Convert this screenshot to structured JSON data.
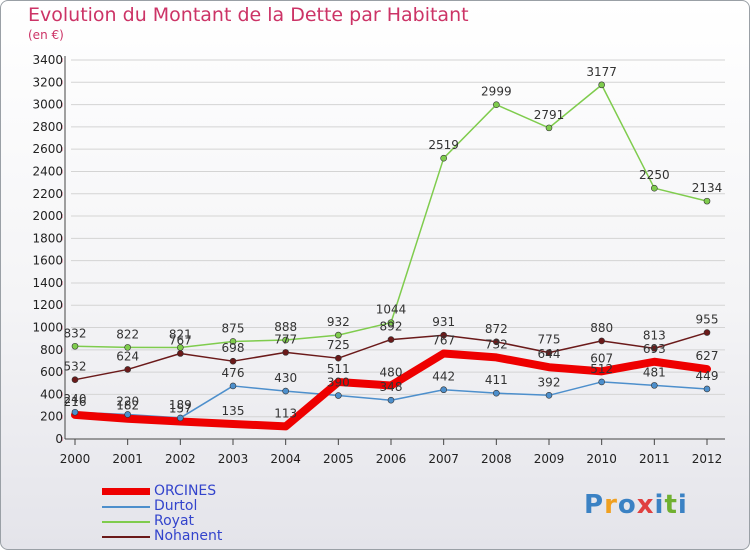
{
  "chart_data": {
    "type": "line",
    "title": "Evolution du Montant de la Dette par Habitant",
    "subtitle": "(en €)",
    "x": [
      "2000",
      "2001",
      "2002",
      "2003",
      "2004",
      "2005",
      "2006",
      "2007",
      "2008",
      "2009",
      "2010",
      "2011",
      "2012"
    ],
    "ylim": [
      0,
      3400
    ],
    "yticks": [
      0,
      200,
      400,
      600,
      800,
      1000,
      1200,
      1400,
      1600,
      1800,
      2000,
      2200,
      2400,
      2600,
      2800,
      3000,
      3200,
      3400
    ],
    "grid": "horizontal",
    "legend_position": "bottom-left",
    "series": [
      {
        "name": "ORCINES",
        "color": "#ee0000",
        "highlight": true,
        "values": [
          216,
          182,
          157,
          135,
          113,
          511,
          480,
          767,
          732,
          644,
          607,
          693,
          627
        ]
      },
      {
        "name": "Durtol",
        "color": "#4d8fcc",
        "values": [
          240,
          220,
          189,
          476,
          430,
          390,
          348,
          442,
          411,
          392,
          512,
          481,
          449
        ]
      },
      {
        "name": "Royat",
        "color": "#7fcc4d",
        "values": [
          832,
          822,
          821,
          875,
          888,
          932,
          1044,
          2519,
          2999,
          2791,
          3177,
          2250,
          2134
        ]
      },
      {
        "name": "Nohanent",
        "color": "#6b1a1a",
        "values": [
          532,
          624,
          767,
          698,
          777,
          725,
          892,
          931,
          872,
          775,
          880,
          813,
          955
        ]
      }
    ]
  },
  "logo": {
    "text": "Proxiti",
    "colors": [
      "#3b82c4",
      "#f0a020",
      "#3b82c4",
      "#e04040",
      "#3b82c4",
      "#70b030",
      "#3b82c4"
    ]
  }
}
